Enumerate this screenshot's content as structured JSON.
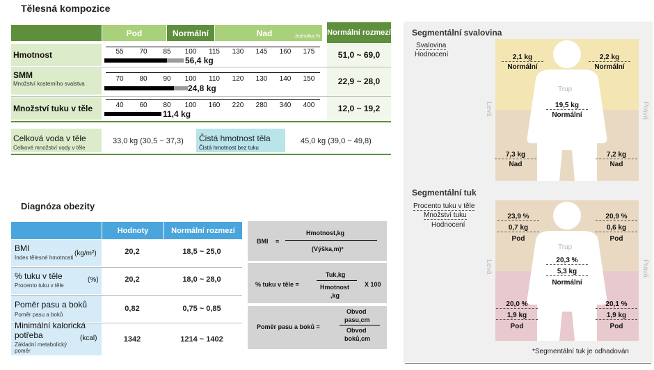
{
  "body_composition": {
    "title": "Tělesná kompozice",
    "headers": {
      "pod": "Pod",
      "normalni": "Normální",
      "nad": "Nad",
      "jednotka": "Jednotka:%",
      "range": "Normální rozmezí"
    },
    "rows": [
      {
        "label": "Hmotnost",
        "sub": "",
        "scale": [
          "55",
          "70",
          "85",
          "100",
          "115",
          "130",
          "145",
          "160",
          "175"
        ],
        "value": "56,4 kg",
        "range": "51,0 ~ 69,0",
        "bar_percent": 80
      },
      {
        "label": "SMM",
        "sub": "Množství kosterního svalstva",
        "scale": [
          "70",
          "80",
          "90",
          "100",
          "110",
          "120",
          "130",
          "140",
          "150"
        ],
        "value": "24,8 kg",
        "range": "22,9 ~ 28,0",
        "bar_percent": 97
      },
      {
        "label": "Množství tuku v těle",
        "sub": "",
        "scale": [
          "40",
          "60",
          "80",
          "100",
          "160",
          "220",
          "280",
          "340",
          "400"
        ],
        "value": "11,4 kg",
        "range": "12,0 ~ 19,2",
        "bar_percent": 77
      }
    ],
    "water": {
      "label": "Celková voda v těle",
      "sub": "Celkové množství vody v těle",
      "value": "33,0 kg (30,5 ~ 37,3)"
    },
    "lean": {
      "label": "Čistá hmotnost těla",
      "sub": "Čistá hmotnost bez tuku",
      "value": "45,0 kg (39,0 ~ 49,8)"
    }
  },
  "obesity": {
    "title": "Diagnóza obezity",
    "headers": {
      "values": "Hodnoty",
      "range": "Normální rozmezí"
    },
    "rows": [
      {
        "label": "BMI",
        "sub": "Index tělesné hmotnosti",
        "unit": "(kg/m²)",
        "value": "20,2",
        "range": "18,5 ~ 25,0"
      },
      {
        "label": "% tuku v těle",
        "sub": "Procento tuku v těle",
        "unit": "(%)",
        "value": "20,2",
        "range": "18,0 ~ 28,0"
      },
      {
        "label": "Poměr pasu a boků",
        "sub": "Poměr pasu a boků",
        "unit": "",
        "value": "0,82",
        "range": "0,75 ~ 0,85"
      },
      {
        "label": "Minimální kalorická potřeba",
        "sub": "Základní metabolický poměr",
        "unit": "(kcal)",
        "value": "1342",
        "range": "1214 ~ 1402"
      }
    ],
    "formulas": {
      "bmi_label": "BMI",
      "eq": "=",
      "bmi_num": "Hmotnost,kg",
      "bmi_den": "(Výška,m)²",
      "fat_label": "% tuku v těle =",
      "fat_num": "Tuk,kg",
      "fat_den1": "Hmotnost",
      "fat_den2": ",kg",
      "fat_mult": "X 100",
      "whr_label": "Poměr pasu a boků =",
      "whr_num1": "Obvod",
      "whr_num2": "pasu,cm",
      "whr_den1": "Obvod",
      "whr_den2": "boků,cm"
    }
  },
  "segmental_muscle": {
    "title": "Segmentální svalovina",
    "legend": [
      "Svalovina",
      "Hodnocení"
    ],
    "left_side": "Levá",
    "right_side": "Pravá",
    "trunk_label": "Trup",
    "left_arm": {
      "kg": "2,1 kg",
      "eval": "Normální"
    },
    "right_arm": {
      "kg": "2,2 kg",
      "eval": "Normální"
    },
    "trunk": {
      "kg": "19,5 kg",
      "eval": "Normální"
    },
    "left_leg": {
      "kg": "7,3 kg",
      "eval": "Nad"
    },
    "right_leg": {
      "kg": "7,2 kg",
      "eval": "Nad"
    }
  },
  "segmental_fat": {
    "title": "Segmentální tuk",
    "legend": [
      "Procento tuku v těle",
      "Množství tuku",
      "Hodnocení"
    ],
    "left_side": "Levá",
    "right_side": "Pravá",
    "trunk_label": "Trup",
    "left_arm": {
      "pct": "23,9 %",
      "kg": "0,7 kg",
      "eval": "Pod"
    },
    "right_arm": {
      "pct": "20,9 %",
      "kg": "0,6 kg",
      "eval": "Pod"
    },
    "trunk": {
      "pct": "20,3 %",
      "kg": "5,3 kg",
      "eval": "Normální"
    },
    "left_leg": {
      "pct": "20,0 %",
      "kg": "1,9 kg",
      "eval": "Pod"
    },
    "right_leg": {
      "pct": "20,1 %",
      "kg": "1,9 kg",
      "eval": "Pod"
    },
    "footnote": "*Segmentální tuk je odhadován"
  },
  "colors": {
    "green": "#5e8f3d",
    "light_green": "#dcebc9",
    "blue": "#4aa5dc",
    "light_blue": "#d5ebf7",
    "yellow": "#f3e6b3",
    "tan": "#ead9c2",
    "pink": "#e8c9cd"
  }
}
